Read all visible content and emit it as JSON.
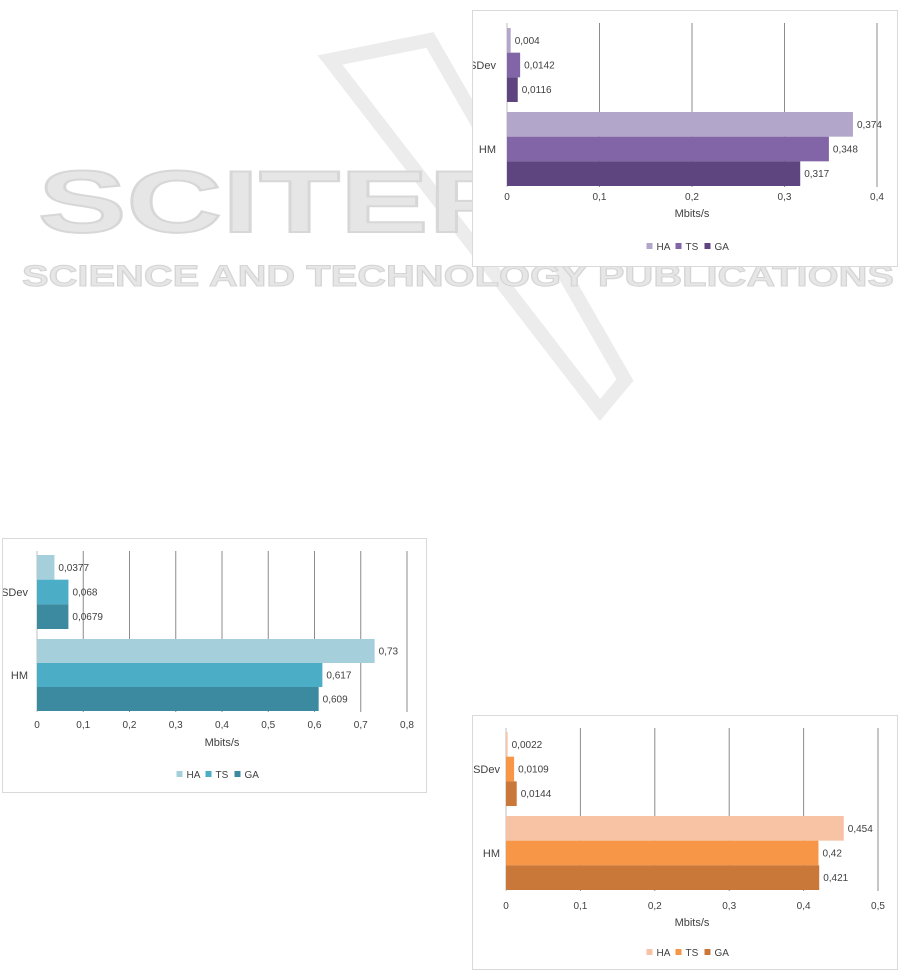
{
  "watermark": {
    "title": "SCITEPRESS",
    "subtitle": "SCIENCE AND TECHNOLOGY PUBLICATIONS"
  },
  "chart_data": [
    {
      "type": "bar",
      "orientation": "horizontal",
      "categories": [
        "SDev",
        "HM"
      ],
      "series": [
        {
          "name": "HA",
          "values": [
            0.004,
            0.374
          ],
          "labels": [
            "0,004",
            "0,374"
          ],
          "color": "#b3a6cb"
        },
        {
          "name": "TS",
          "values": [
            0.0142,
            0.348
          ],
          "labels": [
            "0,0142",
            "0,348"
          ],
          "color": "#8165a6"
        },
        {
          "name": "GA",
          "values": [
            0.0116,
            0.317
          ],
          "labels": [
            "0,0116",
            "0,317"
          ],
          "color": "#5e4580"
        }
      ],
      "xlabel": "Mbits/s",
      "xlim": [
        0,
        0.4
      ],
      "xticks": [
        "0",
        "0,1",
        "0,2",
        "0,3",
        "0,4"
      ],
      "grid": true,
      "legend": "bottom"
    },
    {
      "type": "bar",
      "orientation": "horizontal",
      "categories": [
        "SDev",
        "HM"
      ],
      "series": [
        {
          "name": "HA",
          "values": [
            0.0377,
            0.73
          ],
          "labels": [
            "0,0377",
            "0,73"
          ],
          "color": "#a6cfdc"
        },
        {
          "name": "TS",
          "values": [
            0.068,
            0.617
          ],
          "labels": [
            "0,068",
            "0,617"
          ],
          "color": "#4badc6"
        },
        {
          "name": "GA",
          "values": [
            0.0679,
            0.609
          ],
          "labels": [
            "0,0679",
            "0,609"
          ],
          "color": "#3b8aa0"
        }
      ],
      "xlabel": "Mbits/s",
      "xlim": [
        0,
        0.8
      ],
      "xticks": [
        "0",
        "0,1",
        "0,2",
        "0,3",
        "0,4",
        "0,5",
        "0,6",
        "0,7",
        "0,8"
      ],
      "grid": true,
      "legend": "bottom"
    },
    {
      "type": "bar",
      "orientation": "horizontal",
      "categories": [
        "SDev",
        "HM"
      ],
      "series": [
        {
          "name": "HA",
          "values": [
            0.0022,
            0.454
          ],
          "labels": [
            "0,0022",
            "0,454"
          ],
          "color": "#f8c3a5"
        },
        {
          "name": "TS",
          "values": [
            0.0109,
            0.42
          ],
          "labels": [
            "0,0109",
            "0,42"
          ],
          "color": "#f79646"
        },
        {
          "name": "GA",
          "values": [
            0.0144,
            0.421
          ],
          "labels": [
            "0,0144",
            "0,421"
          ],
          "color": "#c9783a"
        }
      ],
      "xlabel": "Mbits/s",
      "xlim": [
        0,
        0.5
      ],
      "xticks": [
        "0",
        "0,1",
        "0,2",
        "0,3",
        "0,4",
        "0,5"
      ],
      "grid": true,
      "legend": "bottom"
    }
  ]
}
